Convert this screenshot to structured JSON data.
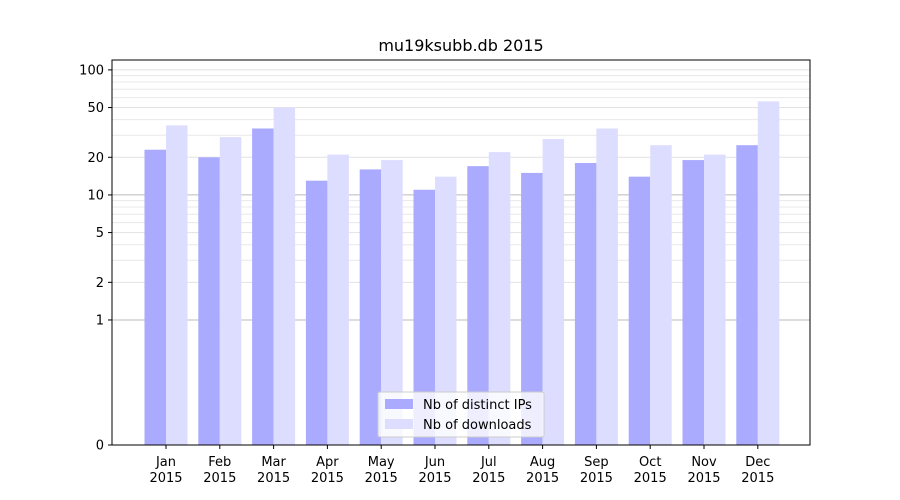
{
  "chart_data": {
    "type": "bar",
    "title": "mu19ksubb.db 2015",
    "xlabel": "",
    "ylabel": "",
    "yscale": "symlog",
    "ylim": [
      0,
      120
    ],
    "yticks": [
      0,
      1,
      2,
      5,
      10,
      20,
      50,
      100
    ],
    "ytick_labels": [
      "0",
      "1",
      "2",
      "5",
      "10",
      "20",
      "50",
      "100"
    ],
    "categories": [
      [
        "Jan",
        "2015"
      ],
      [
        "Feb",
        "2015"
      ],
      [
        "Mar",
        "2015"
      ],
      [
        "Apr",
        "2015"
      ],
      [
        "May",
        "2015"
      ],
      [
        "Jun",
        "2015"
      ],
      [
        "Jul",
        "2015"
      ],
      [
        "Aug",
        "2015"
      ],
      [
        "Sep",
        "2015"
      ],
      [
        "Oct",
        "2015"
      ],
      [
        "Nov",
        "2015"
      ],
      [
        "Dec",
        "2015"
      ]
    ],
    "series": [
      {
        "name": "Nb of distinct IPs",
        "color": "#aaaaff",
        "values": [
          23,
          20,
          34,
          13,
          16,
          11,
          17,
          15,
          18,
          14,
          19,
          25
        ]
      },
      {
        "name": "Nb of downloads",
        "color": "#ddddff",
        "values": [
          36,
          29,
          50,
          21,
          19,
          14,
          22,
          28,
          34,
          25,
          21,
          56
        ]
      }
    ],
    "legend_position": "bottom-center",
    "grid": true
  }
}
